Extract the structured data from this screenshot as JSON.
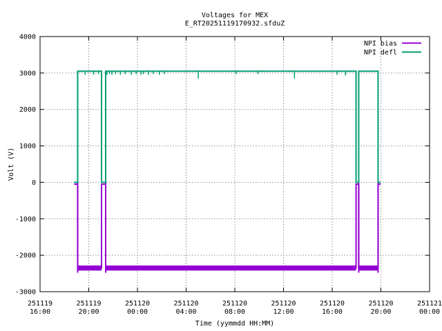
{
  "page": {
    "background": "#ffffff"
  },
  "chart_data": {
    "type": "line",
    "title": "Voltages for MEX",
    "subtitle": "E_RT20251119170932.sfduZ",
    "xlabel": "Time (yymmdd HH:MM)",
    "ylabel": "Volt (V)",
    "grid": true,
    "legend_position": "top-right-inside",
    "x_axis": {
      "total_hours": 32,
      "ticks": [
        {
          "hours": 0,
          "date": "251119",
          "time": "16:00"
        },
        {
          "hours": 4,
          "date": "251119",
          "time": "20:00"
        },
        {
          "hours": 8,
          "date": "251120",
          "time": "00:00"
        },
        {
          "hours": 12,
          "date": "251120",
          "time": "04:00"
        },
        {
          "hours": 16,
          "date": "251120",
          "time": "08:00"
        },
        {
          "hours": 20,
          "date": "251120",
          "time": "12:00"
        },
        {
          "hours": 24,
          "date": "251120",
          "time": "16:00"
        },
        {
          "hours": 28,
          "date": "251120",
          "time": "20:00"
        },
        {
          "hours": 32,
          "date": "251121",
          "time": "00:00"
        }
      ]
    },
    "y_axis": {
      "min": -3000,
      "max": 4000,
      "ticks": [
        4000,
        3000,
        2000,
        1000,
        0,
        -1000,
        -2000,
        -3000
      ]
    },
    "series": [
      {
        "name": "NPI bias",
        "color": "#9400d3",
        "points_hours_volts": [
          [
            2.8,
            -50
          ],
          [
            3.09,
            -50
          ],
          [
            3.09,
            -2350
          ],
          [
            5.05,
            -2350
          ],
          [
            5.05,
            -50
          ],
          [
            5.39,
            -50
          ],
          [
            5.39,
            -2350
          ],
          [
            25.96,
            -2350
          ],
          [
            25.96,
            -50
          ],
          [
            26.18,
            -50
          ],
          [
            26.18,
            -2350
          ],
          [
            27.77,
            -2350
          ],
          [
            27.77,
            -50
          ],
          [
            27.97,
            -50
          ]
        ],
        "noise_band_volts": 140,
        "undershoot_spike_hours": [
          3.09,
          5.39,
          26.18,
          27.77
        ],
        "undershoot_volts": -2480
      },
      {
        "name": "NPI defl",
        "color": "#009e73",
        "points_hours_volts": [
          [
            2.8,
            0
          ],
          [
            3.09,
            0
          ],
          [
            3.09,
            3050
          ],
          [
            5.05,
            3050
          ],
          [
            5.05,
            0
          ],
          [
            5.39,
            0
          ],
          [
            5.39,
            3050
          ],
          [
            25.96,
            3050
          ],
          [
            25.96,
            0
          ],
          [
            26.18,
            0
          ],
          [
            26.18,
            3050
          ],
          [
            27.77,
            3050
          ],
          [
            27.77,
            0
          ],
          [
            27.97,
            0
          ]
        ],
        "noise_ticks_hours_depth": [
          [
            3.7,
            100
          ],
          [
            4.4,
            100
          ],
          [
            4.8,
            80
          ],
          [
            5.5,
            100
          ],
          [
            5.7,
            80
          ],
          [
            5.9,
            100
          ],
          [
            6.2,
            80
          ],
          [
            6.6,
            100
          ],
          [
            7.0,
            80
          ],
          [
            7.5,
            100
          ],
          [
            7.9,
            80
          ],
          [
            8.3,
            100
          ],
          [
            8.5,
            80
          ],
          [
            8.9,
            100
          ],
          [
            9.3,
            80
          ],
          [
            9.8,
            100
          ],
          [
            10.2,
            80
          ],
          [
            13.0,
            200
          ],
          [
            16.1,
            80
          ],
          [
            17.9,
            80
          ],
          [
            20.9,
            200
          ],
          [
            24.4,
            100
          ],
          [
            25.1,
            120
          ]
        ]
      }
    ],
    "colors": {
      "axis": "#000000",
      "grid": "#a8a8a8",
      "text": "#000000"
    }
  }
}
